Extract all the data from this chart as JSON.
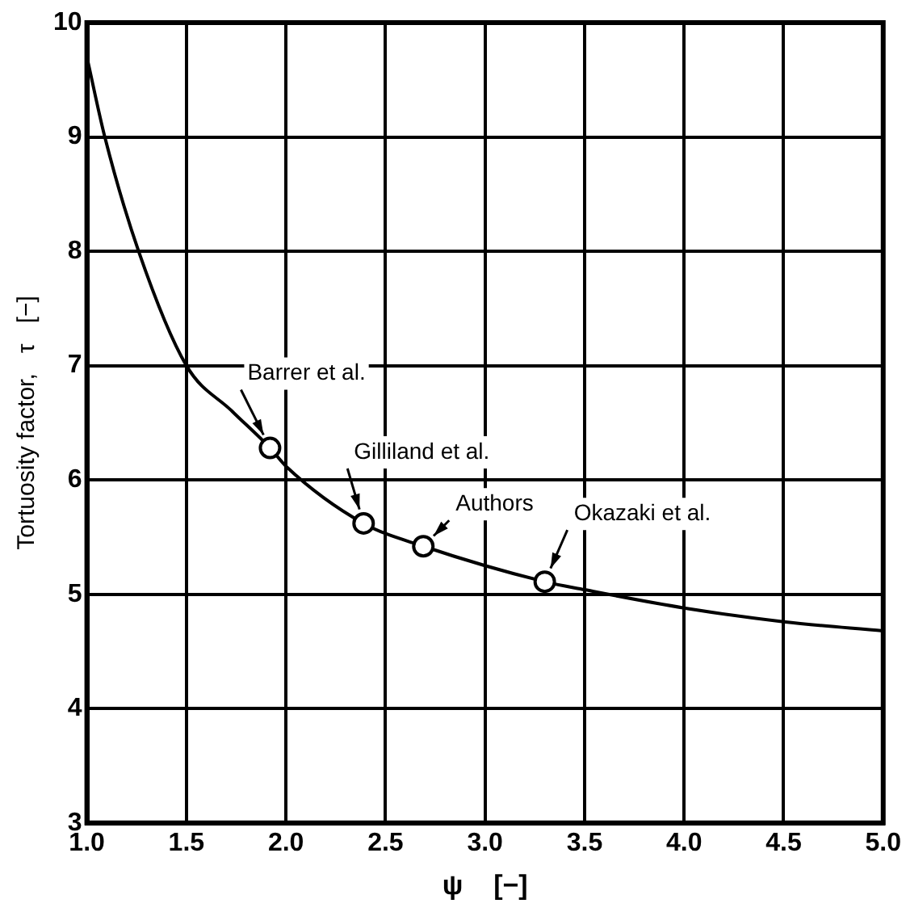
{
  "chart_data": {
    "type": "line",
    "xlabel": "ψ    [−]",
    "ylabel": "Tortuosity factor,   τ   [−]",
    "xlim": [
      1.0,
      5.0
    ],
    "ylim": [
      3,
      10
    ],
    "xticks": [
      {
        "value": 1.0,
        "label": "1.0"
      },
      {
        "value": 1.5,
        "label": "1.5"
      },
      {
        "value": 2.0,
        "label": "2.0"
      },
      {
        "value": 2.5,
        "label": "2.5"
      },
      {
        "value": 3.0,
        "label": "3.0"
      },
      {
        "value": 3.5,
        "label": "3.5"
      },
      {
        "value": 4.0,
        "label": "4.0"
      },
      {
        "value": 4.5,
        "label": "4.5"
      },
      {
        "value": 5.0,
        "label": "5.0"
      }
    ],
    "yticks": [
      3,
      4,
      5,
      6,
      7,
      8,
      9,
      10
    ],
    "grid": true,
    "legend": false,
    "series": [
      {
        "color": "#000000",
        "marker": "none",
        "x": [
          1.0,
          1.09,
          1.26,
          1.5,
          1.73,
          1.92,
          2.0,
          2.39,
          2.69,
          3.3,
          3.5,
          4.0,
          4.5,
          5.0
        ],
        "values": [
          9.7,
          9.0,
          8.0,
          7.0,
          6.6,
          6.28,
          6.12,
          5.62,
          5.42,
          5.11,
          5.04,
          4.88,
          4.76,
          4.68
        ]
      },
      {
        "type": "scatter",
        "color": "#000000",
        "marker": "circle",
        "x": [
          1.92,
          2.39,
          2.69,
          3.3
        ],
        "values": [
          6.28,
          5.62,
          5.42,
          5.11
        ]
      }
    ],
    "annotations": [
      {
        "text": "Barrer et al.",
        "x": 1.92,
        "y": 6.28
      },
      {
        "text": "Gilliland et al.",
        "x": 2.39,
        "y": 5.62
      },
      {
        "text": "Authors",
        "x": 2.69,
        "y": 5.42
      },
      {
        "text": "Okazaki et al.",
        "x": 3.3,
        "y": 5.11
      }
    ]
  }
}
